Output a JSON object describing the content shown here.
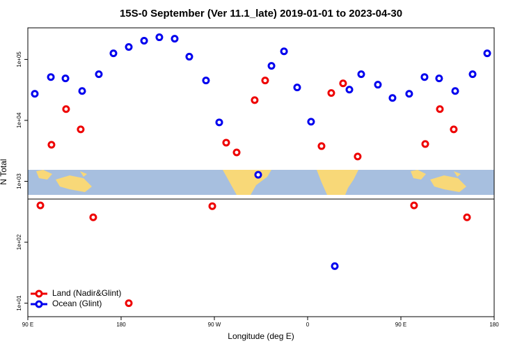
{
  "chart_data": {
    "type": "scatter",
    "title": "15S-0 September (Ver 11.1_late)   2019-01-01 to 2023-04-30",
    "x_label": "Longitude (deg E)",
    "y_label": "N Total",
    "log_y": true,
    "legend": "lower left",
    "xlim": [
      90,
      540
    ],
    "xticks": [
      {
        "value": 90,
        "label": "90 E"
      },
      {
        "value": 180,
        "label": "180"
      },
      {
        "value": 270,
        "label": "90 W"
      },
      {
        "value": 360,
        "label": "0"
      },
      {
        "value": 450,
        "label": "90 E"
      },
      {
        "value": 540,
        "label": "180"
      }
    ],
    "ylim": [
      6,
      330000
    ],
    "yticks": [
      {
        "value": 10,
        "label": "1e+01"
      },
      {
        "value": 100,
        "label": "1e+02"
      },
      {
        "value": 1000,
        "label": "1e+03"
      },
      {
        "value": 10000,
        "label": "1e+04"
      },
      {
        "value": 100000,
        "label": "1e+05"
      }
    ],
    "series": [
      {
        "name": "Land (Nadir&Glint)",
        "color": "#ee0000",
        "x": [
          102.1,
          112.8,
          126.9,
          141.0,
          153.1,
          187.4,
          268.0,
          281.4,
          291.5,
          308.9,
          319.0,
          373.4,
          382.8,
          394.2,
          408.3,
          462.7,
          473.5,
          487.6,
          501.0,
          513.8
        ],
        "values": [
          402,
          3980,
          15300,
          7110,
          256,
          10,
          391,
          4310,
          2980,
          21500,
          45100,
          3780,
          28100,
          40500,
          2550,
          402,
          4090,
          15300,
          7110,
          256
        ]
      },
      {
        "name": "Ocean (Glint)",
        "color": "#0000ee",
        "x": [
          96.7,
          112.2,
          126.3,
          142.4,
          158.5,
          172.6,
          187.4,
          202.2,
          216.9,
          231.7,
          245.8,
          261.9,
          274.7,
          312.3,
          325.1,
          337.2,
          349.9,
          363.3,
          386.2,
          400.3,
          411.7,
          427.8,
          441.9,
          458.0,
          472.8,
          486.9,
          502.4,
          519.2,
          533.3
        ],
        "values": [
          27300,
          51400,
          48800,
          30300,
          57200,
          126000,
          160000,
          203000,
          231000,
          219000,
          111000,
          45100,
          9270,
          1280,
          78500,
          136000,
          34700,
          9500,
          40.5,
          32000,
          57200,
          38500,
          23300,
          27300,
          51400,
          48800,
          30300,
          57200,
          126000
        ]
      }
    ]
  }
}
